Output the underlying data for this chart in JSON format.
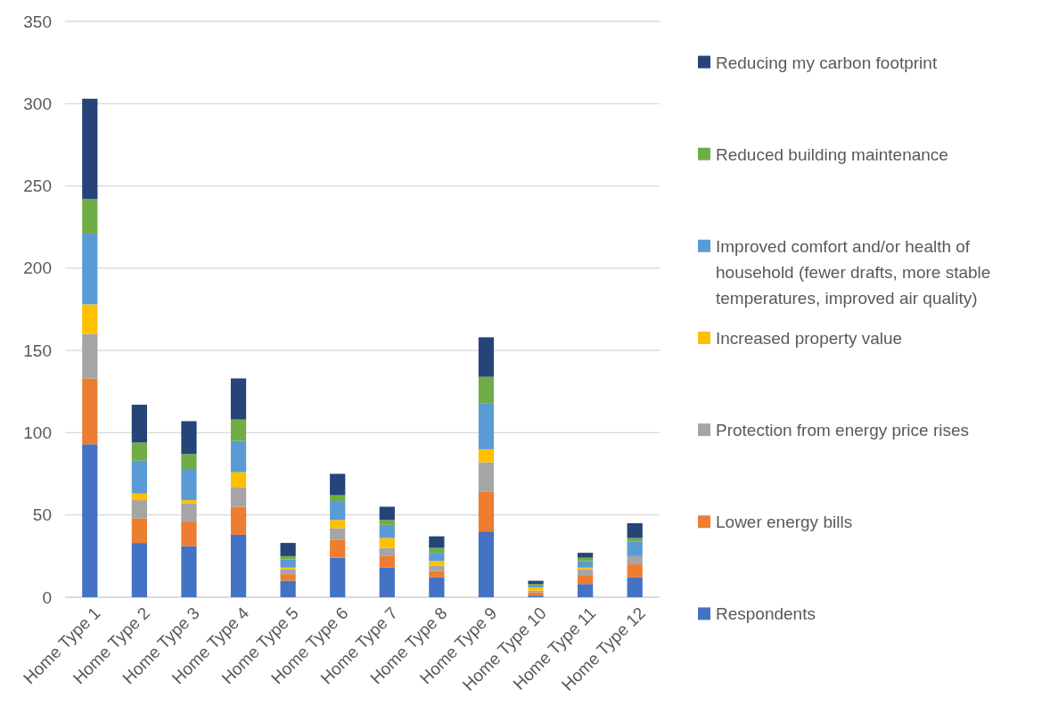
{
  "chart_data": {
    "type": "bar",
    "stacked": true,
    "categories": [
      "Home Type 1",
      "Home Type 2",
      "Home Type 3",
      "Home Type 4",
      "Home Type 5",
      "Home Type 6",
      "Home Type 7",
      "Home Type 8",
      "Home Type 9",
      "Home Type 10",
      "Home Type 11",
      "Home Type 12"
    ],
    "series": [
      {
        "name": "Respondents",
        "color": "#4472c4",
        "values": [
          93,
          33,
          31,
          38,
          10,
          24,
          18,
          12,
          40,
          1,
          8,
          12
        ]
      },
      {
        "name": "Lower energy bills",
        "color": "#ed7d31",
        "values": [
          40,
          15,
          15,
          17,
          4,
          11,
          7,
          4,
          24,
          2,
          5,
          8
        ]
      },
      {
        "name": "Protection from energy price rises",
        "color": "#a5a5a5",
        "values": [
          27,
          11,
          11,
          12,
          3,
          7,
          5,
          3,
          18,
          1,
          4,
          5
        ]
      },
      {
        "name": "Increased property value",
        "color": "#ffc000",
        "values": [
          18,
          4,
          2,
          9,
          1,
          5,
          6,
          3,
          8,
          2,
          1,
          0
        ]
      },
      {
        "name": "Improved comfort and/or health of household (fewer drafts, more stable temperatures, improved air quality)",
        "color": "#5b9bd5",
        "values": [
          43,
          20,
          19,
          19,
          5,
          11,
          8,
          5,
          28,
          1,
          4,
          9
        ]
      },
      {
        "name": "Reduced building maintenance",
        "color": "#70ad47",
        "values": [
          21,
          11,
          9,
          13,
          2,
          4,
          3,
          3,
          16,
          1,
          2,
          2
        ]
      },
      {
        "name": "Reducing my carbon footprint",
        "color": "#264478",
        "values": [
          61,
          23,
          20,
          25,
          8,
          13,
          8,
          7,
          24,
          2,
          3,
          9
        ]
      }
    ],
    "ylim": [
      0,
      350
    ],
    "yticks": [
      0,
      50,
      100,
      150,
      200,
      250,
      300,
      350
    ],
    "grid": "y",
    "legend": "right"
  }
}
